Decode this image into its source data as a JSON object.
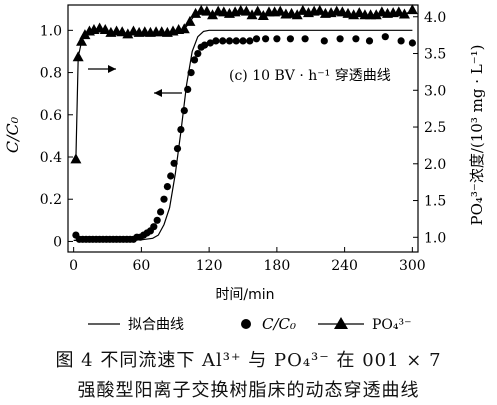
{
  "chart_data": {
    "type": "line",
    "annotation": "(c) 10 BV · h⁻¹ 穿透曲线",
    "xlabel": "时间/min",
    "ylabel_left": "C/C₀",
    "ylabel_right": "PO₄³⁻浓度/(10³ mg · L⁻¹)",
    "xlim": [
      -5,
      305
    ],
    "xticks": [
      0,
      60,
      120,
      180,
      240,
      300
    ],
    "ylim_left": [
      -0.05,
      1.12
    ],
    "yticks_left": [
      0,
      0.2,
      0.4,
      0.6,
      0.8,
      1.0
    ],
    "ylim_right": [
      0.8,
      4.16
    ],
    "yticks_right": [
      1.0,
      1.5,
      2.0,
      2.5,
      3.0,
      3.5,
      4.0
    ],
    "series": [
      {
        "name": "拟合曲线",
        "axis": "left",
        "marker": "line",
        "x": [
          0,
          20,
          40,
          60,
          70,
          75,
          80,
          85,
          90,
          95,
          100,
          105,
          110,
          115,
          120,
          130,
          150,
          200,
          250,
          300
        ],
        "y": [
          0.005,
          0.005,
          0.005,
          0.008,
          0.015,
          0.03,
          0.08,
          0.16,
          0.32,
          0.52,
          0.74,
          0.9,
          0.97,
          0.995,
          1.0,
          1.0,
          1.0,
          1.0,
          1.0,
          1.0
        ]
      },
      {
        "name": "C/C₀",
        "axis": "left",
        "marker": "circle",
        "x": [
          2,
          5,
          8,
          11,
          14,
          17,
          20,
          23,
          26,
          29,
          32,
          35,
          38,
          41,
          44,
          47,
          50,
          53,
          56,
          59,
          62,
          65,
          68,
          71,
          74,
          77,
          80,
          83,
          86,
          89,
          92,
          95,
          98,
          101,
          104,
          107,
          110,
          113,
          116,
          121,
          126,
          132,
          138,
          144,
          150,
          156,
          162,
          170,
          180,
          192,
          205,
          222,
          236,
          250,
          262,
          276,
          290,
          300
        ],
        "y": [
          0.03,
          0.01,
          0.01,
          0.01,
          0.01,
          0.01,
          0.01,
          0.01,
          0.01,
          0.01,
          0.01,
          0.01,
          0.01,
          0.01,
          0.01,
          0.01,
          0.01,
          0.01,
          0.02,
          0.02,
          0.03,
          0.04,
          0.05,
          0.07,
          0.1,
          0.14,
          0.2,
          0.26,
          0.31,
          0.37,
          0.44,
          0.53,
          0.62,
          0.72,
          0.8,
          0.86,
          0.89,
          0.92,
          0.93,
          0.94,
          0.95,
          0.95,
          0.95,
          0.95,
          0.95,
          0.95,
          0.96,
          0.96,
          0.96,
          0.96,
          0.96,
          0.95,
          0.96,
          0.96,
          0.95,
          0.97,
          0.95,
          0.94
        ]
      },
      {
        "name": "PO₄³⁻",
        "axis": "right",
        "marker": "triangle",
        "x": [
          2,
          4,
          7,
          10,
          14,
          18,
          23,
          28,
          33,
          38,
          43,
          48,
          53,
          58,
          63,
          68,
          73,
          78,
          83,
          88,
          93,
          98,
          103,
          108,
          113,
          118,
          123,
          128,
          133,
          138,
          143,
          148,
          153,
          158,
          163,
          168,
          173,
          178,
          183,
          188,
          193,
          198,
          203,
          208,
          213,
          218,
          223,
          228,
          233,
          238,
          243,
          248,
          253,
          258,
          263,
          268,
          273,
          278,
          283,
          288,
          293,
          300
        ],
        "y": [
          2.06,
          3.45,
          3.66,
          3.75,
          3.8,
          3.82,
          3.84,
          3.82,
          3.78,
          3.8,
          3.79,
          3.76,
          3.8,
          3.78,
          3.79,
          3.78,
          3.79,
          3.79,
          3.78,
          3.8,
          3.82,
          3.83,
          3.93,
          4.04,
          4.08,
          4.07,
          4.02,
          4.07,
          4.06,
          4.04,
          4.06,
          4.08,
          4.07,
          4.02,
          4.07,
          4.01,
          4.06,
          4.06,
          4.07,
          4.03,
          4.04,
          4.02,
          4.08,
          4.05,
          4.07,
          4.08,
          4.04,
          4.05,
          4.07,
          4.06,
          4.04,
          4.02,
          4.05,
          4.02,
          4.02,
          4.02,
          4.06,
          4.04,
          4.05,
          4.06,
          4.03,
          4.09
        ]
      }
    ],
    "legend_position": "bottom",
    "grid": false,
    "colors": {
      "line": "#000000",
      "marker": "#000000",
      "background": "#ffffff"
    }
  },
  "legend": {
    "fit_label": "拟合曲线",
    "c_label": "C/C₀",
    "po4_label": "PO₄³⁻"
  },
  "caption": {
    "line1": "图 4   不同流速下 Al³⁺ 与 PO₄³⁻ 在 001 × 7",
    "line2": "强酸型阳离子交换树脂床的动态穿透曲线"
  }
}
